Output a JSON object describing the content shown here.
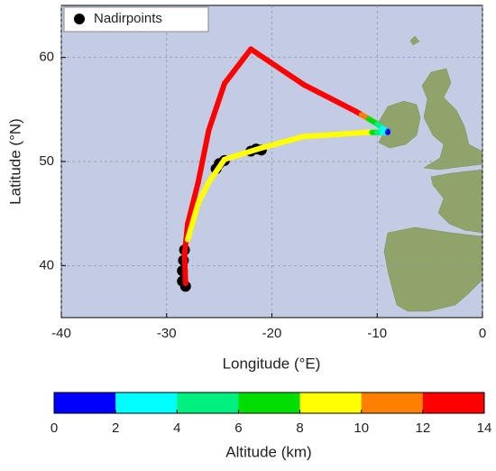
{
  "chart_data": {
    "type": "scatter",
    "x_label": "Longitude (°E)",
    "y_label": "Latitude (°N)",
    "xlim": [
      -40,
      0
    ],
    "ylim": [
      35,
      65
    ],
    "xticks": [
      -40,
      -30,
      -20,
      -10,
      0
    ],
    "yticks": [
      40,
      50,
      60
    ],
    "grid": true,
    "legend": "upper left",
    "series": [
      {
        "name": "Nadirpoints",
        "color": "#000000",
        "x": [
          -21,
          -21.5,
          -22,
          -24.5,
          -25,
          -25.3,
          -28.3,
          -28.4,
          -28.5,
          -28.5,
          -28.2
        ],
        "y": [
          51.1,
          51.2,
          51.0,
          50.1,
          49.8,
          49.3,
          41.5,
          40.5,
          39.5,
          38.5,
          38.0
        ]
      },
      {
        "x": [
          -9,
          -9.5,
          -10,
          -10.8,
          -11.5,
          -12,
          -17,
          -22,
          -24.5,
          -26,
          -27,
          -28,
          -28.3,
          -28.2
        ],
        "y": [
          52.9,
          53.2,
          53.6,
          54.1,
          54.5,
          54.8,
          57.4,
          60.8,
          57.5,
          53,
          48,
          44,
          41,
          38.3
        ],
        "altitude": [
          0.5,
          3,
          5,
          7,
          10,
          12.5,
          12.5,
          12.5,
          12.5,
          12.5,
          12.5,
          12.5,
          12.5,
          12.5
        ]
      },
      {
        "x": [
          -9,
          -9.5,
          -10,
          -10.5,
          -11,
          -17,
          -21,
          -24.5,
          -26,
          -27,
          -28
        ],
        "y": [
          52.8,
          52.8,
          52.8,
          52.8,
          52.8,
          52.4,
          51.3,
          50.2,
          48,
          46,
          42.5
        ],
        "altitude": [
          0.5,
          2.5,
          5,
          7,
          9,
          9,
          9,
          9,
          9,
          9,
          9
        ]
      }
    ],
    "colorbar": {
      "label": "Altitude (km)",
      "lim": [
        0,
        14
      ],
      "ticks": [
        0,
        2,
        4,
        6,
        8,
        10,
        12,
        14
      ],
      "colors": [
        "#0000ff",
        "#00ffff",
        "#00f080",
        "#00dd00",
        "#ffff00",
        "#ff8000",
        "#ff0000"
      ]
    }
  }
}
